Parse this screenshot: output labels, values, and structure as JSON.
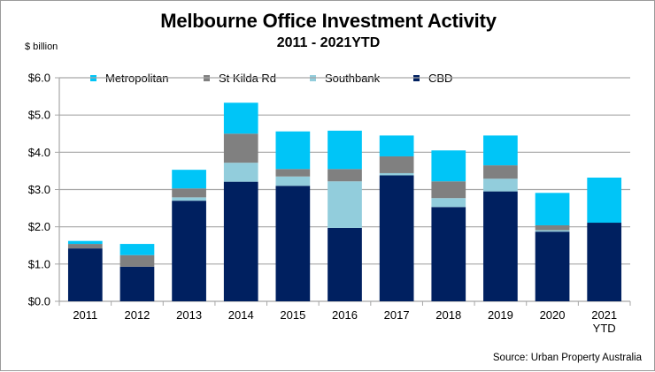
{
  "chart_data": {
    "type": "bar",
    "stacked": true,
    "title": "Melbourne Office Investment Activity",
    "subtitle": "2011 - 2021YTD",
    "ylabel": "$ billion",
    "xlabel": "",
    "ylim": [
      0,
      6
    ],
    "yticks": [
      0,
      1,
      2,
      3,
      4,
      5,
      6
    ],
    "ytick_labels": [
      "$0.0",
      "$1.0",
      "$2.0",
      "$3.0",
      "$4.0",
      "$5.0",
      "$6.0"
    ],
    "grid": true,
    "legend_position": "top",
    "categories": [
      "2011",
      "2012",
      "2013",
      "2014",
      "2015",
      "2016",
      "2017",
      "2018",
      "2019",
      "2020",
      "2021\nYTD"
    ],
    "category_lines": [
      [
        "2011"
      ],
      [
        "2012"
      ],
      [
        "2013"
      ],
      [
        "2014"
      ],
      [
        "2015"
      ],
      [
        "2016"
      ],
      [
        "2017"
      ],
      [
        "2018"
      ],
      [
        "2019"
      ],
      [
        "2020"
      ],
      [
        "2021",
        "YTD"
      ]
    ],
    "series": [
      {
        "name": "CBD",
        "color": "#002060",
        "values": [
          1.42,
          0.93,
          2.7,
          3.21,
          3.1,
          1.97,
          3.38,
          2.53,
          2.95,
          1.87,
          2.11
        ]
      },
      {
        "name": "Southbank",
        "color": "#92CDDC",
        "values": [
          0.0,
          0.0,
          0.09,
          0.51,
          0.25,
          1.25,
          0.06,
          0.24,
          0.34,
          0.04,
          0.0
        ]
      },
      {
        "name": "St Kilda Rd",
        "color": "#808080",
        "values": [
          0.12,
          0.31,
          0.24,
          0.78,
          0.2,
          0.33,
          0.45,
          0.45,
          0.36,
          0.13,
          0.0
        ]
      },
      {
        "name": "Metropolitan",
        "color": "#00C5F7",
        "values": [
          0.08,
          0.3,
          0.5,
          0.83,
          1.01,
          1.03,
          0.56,
          0.83,
          0.8,
          0.87,
          1.21
        ]
      }
    ],
    "legend_order": [
      "Metropolitan",
      "St Kilda Rd",
      "Southbank",
      "CBD"
    ],
    "source": "Source: Urban Property Australia"
  }
}
